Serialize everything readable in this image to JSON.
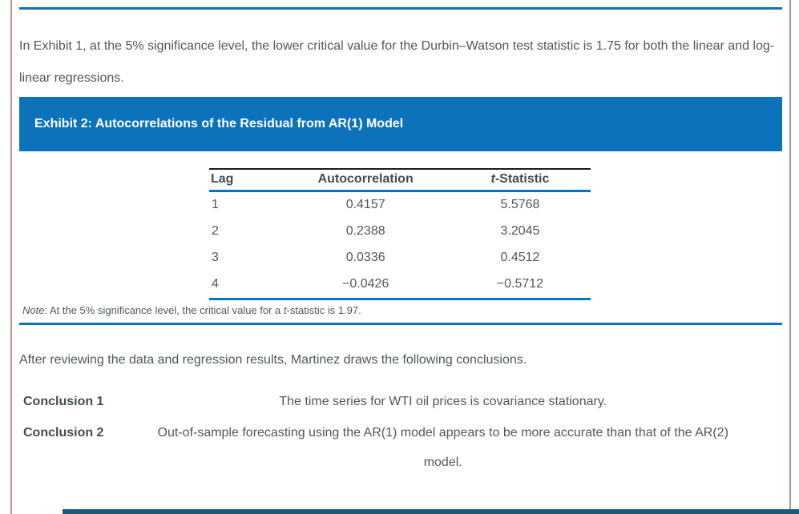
{
  "colors": {
    "accent_blue": "#0c72ba",
    "page_edge_rose": "#c4908b",
    "body_text": "#4f575e",
    "heading_text": "#434c55",
    "table_top_border": "#1b1b1b",
    "bottom_bar_teal": "#175d76",
    "exhibit_header_text": "#ffffff"
  },
  "intro_paragraph": "In Exhibit 1, at the 5% significance level, the lower critical value for the Durbin–Watson test statistic is 1.75 for both the linear and log-linear regressions.",
  "exhibit2": {
    "title": "Exhibit 2: Autocorrelations of the Residual from AR(1) Model",
    "table": {
      "col_lag": "Lag",
      "col_autocorrelation": "Autocorrelation",
      "col_t_statistic_italic": "t",
      "col_t_statistic_rest": "-Statistic",
      "rows": [
        [
          "1",
          "0.4157",
          "5.5768"
        ],
        [
          "2",
          "0.2388",
          "3.2045"
        ],
        [
          "3",
          "0.0336",
          "0.4512"
        ],
        [
          "4",
          "−0.0426",
          "−0.5712"
        ]
      ]
    },
    "note": {
      "label": "Note",
      "mid": ": At the 5% significance level, the critical value for a ",
      "t": "t",
      "end": "-statistic is 1.97."
    }
  },
  "conclusions": {
    "intro": "After reviewing the data and regression results, Martinez draws the following conclusions.",
    "items": [
      {
        "label": "Conclusion 1",
        "lines": [
          "The time series for WTI oil prices is covariance stationary."
        ]
      },
      {
        "label": "Conclusion 2",
        "lines": [
          "Out-of-sample forecasting using the AR(1) model appears to be more accurate than that of the AR(2)",
          "model."
        ]
      }
    ]
  }
}
